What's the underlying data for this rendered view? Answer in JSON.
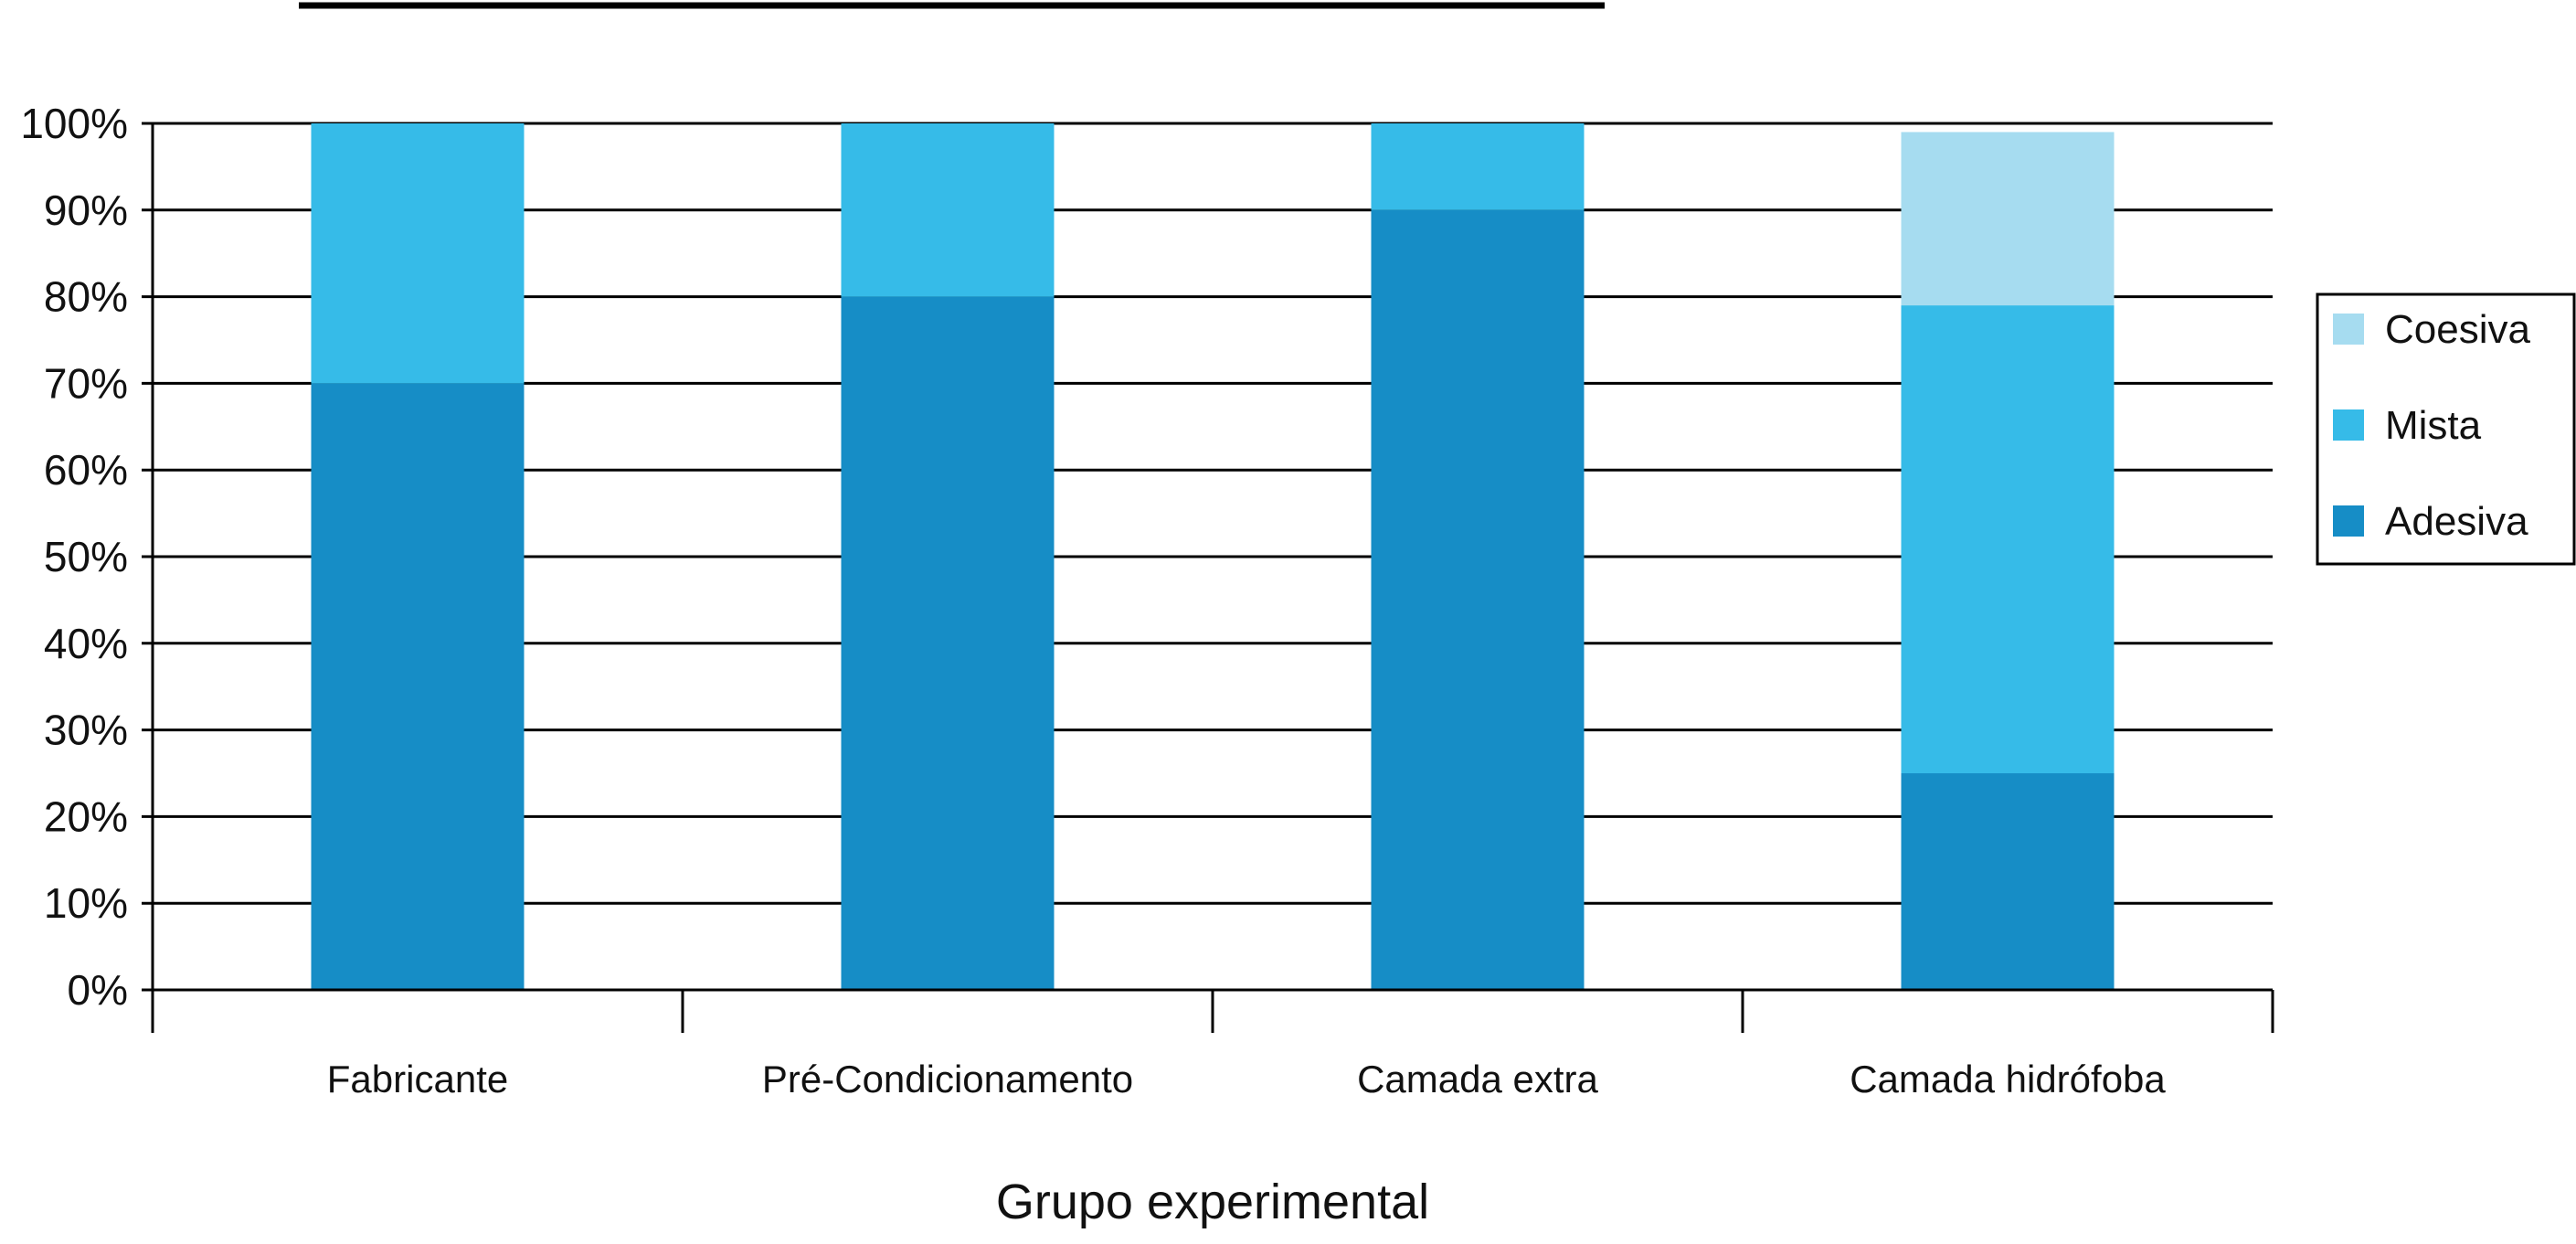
{
  "chart_data": {
    "type": "bar",
    "stacked": true,
    "categories": [
      "Fabricante",
      "Pré-Condicionamento",
      "Camada extra",
      "Camada hidrófoba"
    ],
    "series": [
      {
        "name": "Adesiva",
        "values": [
          70,
          80,
          90,
          25
        ],
        "color": "#168dc6"
      },
      {
        "name": "Mista",
        "values": [
          30,
          20,
          10,
          54
        ],
        "color": "#36bbe8"
      },
      {
        "name": "Coesiva",
        "values": [
          0,
          0,
          0,
          20
        ],
        "color": "#a6dcf0"
      }
    ],
    "xlabel": "Grupo experimental",
    "ylabel": "",
    "ylim": [
      0,
      100
    ],
    "yticks": [
      "0%",
      "10%",
      "20%",
      "30%",
      "40%",
      "50%",
      "60%",
      "70%",
      "80%",
      "90%",
      "100%"
    ],
    "grid": true,
    "legend_position": "right"
  }
}
